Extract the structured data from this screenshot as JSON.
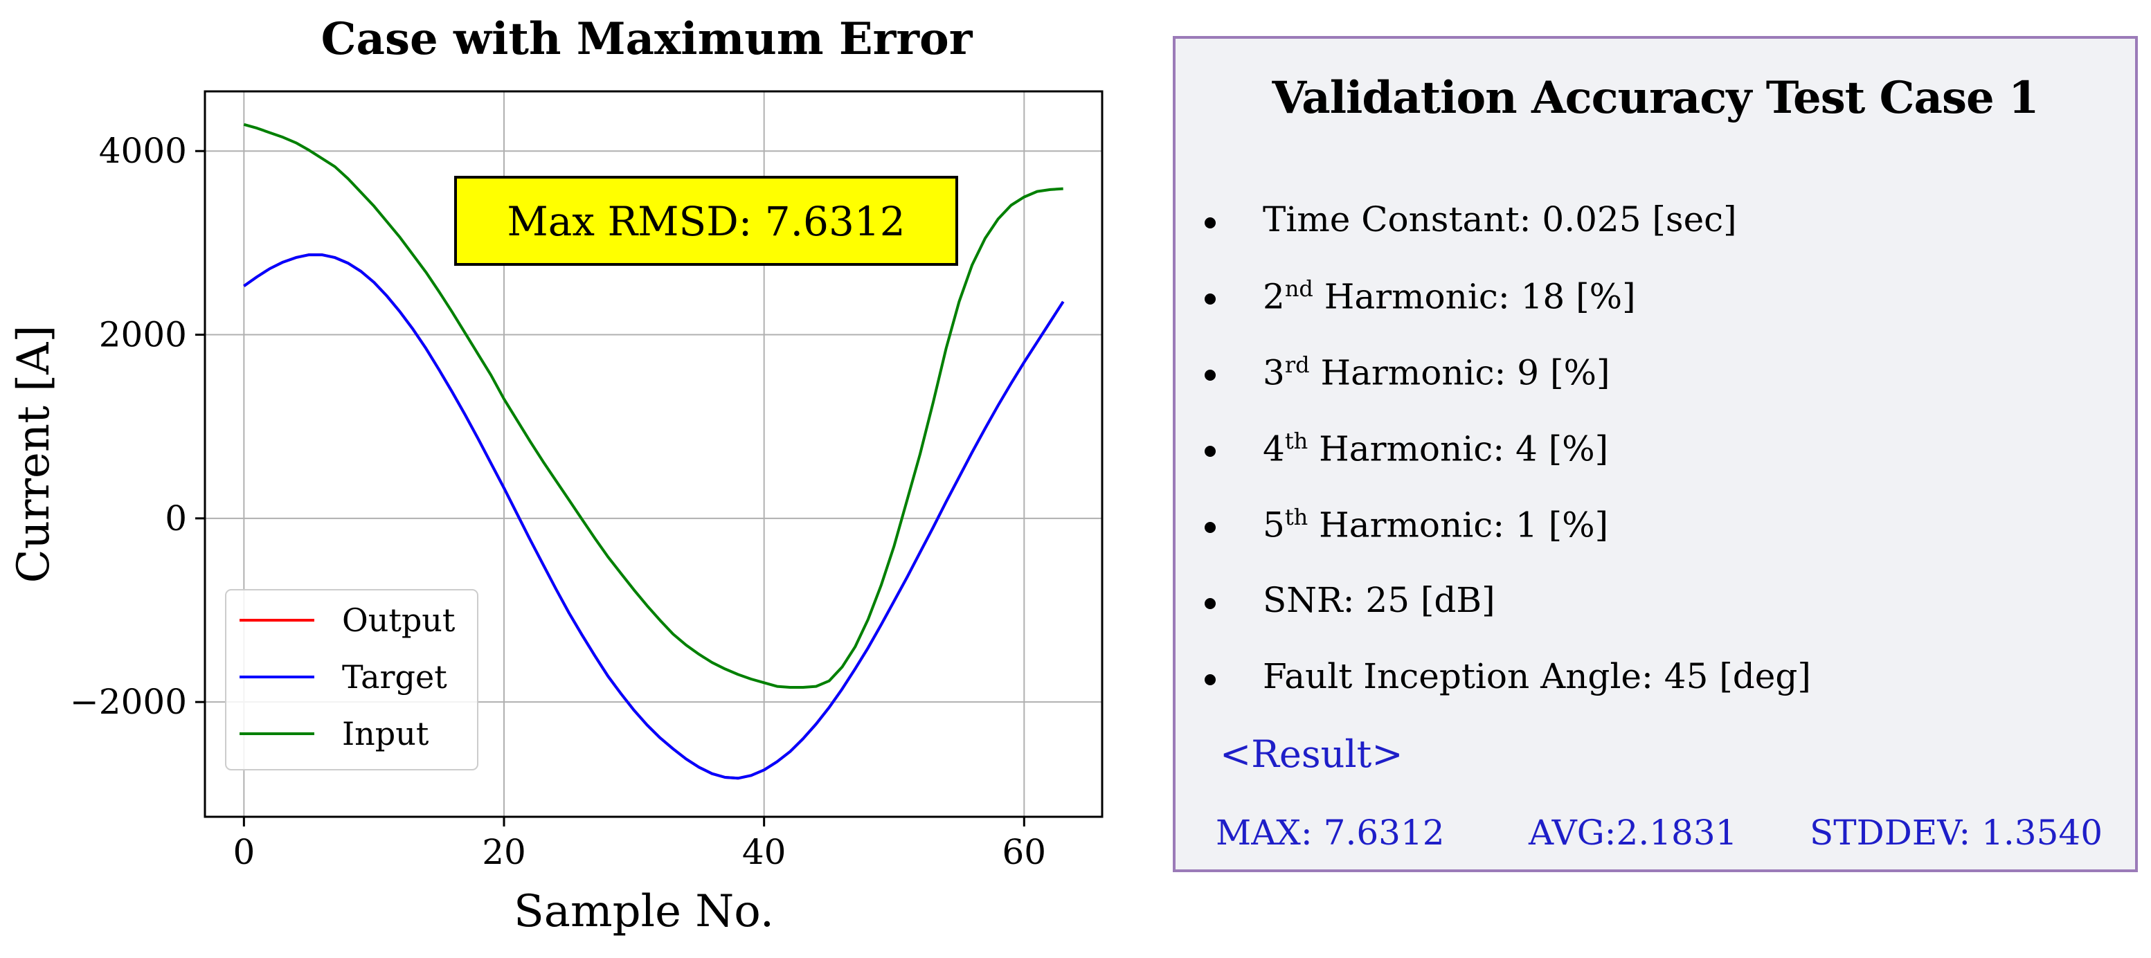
{
  "chart_data": {
    "type": "line",
    "title": "Case with Maximum Error",
    "xlabel": "Sample No.",
    "ylabel": "Current [A]",
    "xlim": [
      -3,
      66
    ],
    "ylim": [
      -3250,
      4650
    ],
    "xticks": [
      0,
      20,
      40,
      60
    ],
    "yticks": [
      -2000,
      0,
      2000,
      4000
    ],
    "xtick_labels": [
      "0",
      "20",
      "40",
      "60"
    ],
    "ytick_labels": [
      "−2000",
      "0",
      "2000",
      "4000"
    ],
    "grid": true,
    "legend_position": "lower-left",
    "annotation": {
      "text": "Max RMSD: 7.6312",
      "background": "#ffff00"
    },
    "x": [
      0,
      1,
      2,
      3,
      4,
      5,
      6,
      7,
      8,
      9,
      10,
      11,
      12,
      13,
      14,
      15,
      16,
      17,
      18,
      19,
      20,
      21,
      22,
      23,
      24,
      25,
      26,
      27,
      28,
      29,
      30,
      31,
      32,
      33,
      34,
      35,
      36,
      37,
      38,
      39,
      40,
      41,
      42,
      43,
      44,
      45,
      46,
      47,
      48,
      49,
      50,
      51,
      52,
      53,
      54,
      55,
      56,
      57,
      58,
      59,
      60,
      61,
      62,
      63
    ],
    "series": [
      {
        "name": "Output",
        "color": "#ff0000",
        "values": [
          2530,
          2630,
          2720,
          2790,
          2840,
          2870,
          2870,
          2840,
          2780,
          2690,
          2570,
          2420,
          2250,
          2060,
          1850,
          1620,
          1380,
          1130,
          870,
          600,
          330,
          50,
          -230,
          -500,
          -770,
          -1030,
          -1270,
          -1500,
          -1720,
          -1910,
          -2090,
          -2250,
          -2390,
          -2510,
          -2620,
          -2710,
          -2780,
          -2820,
          -2830,
          -2800,
          -2740,
          -2650,
          -2540,
          -2400,
          -2240,
          -2060,
          -1860,
          -1640,
          -1410,
          -1160,
          -900,
          -640,
          -370,
          -100,
          180,
          450,
          720,
          980,
          1230,
          1470,
          1700,
          1920,
          2140,
          2360
        ]
      },
      {
        "name": "Target",
        "color": "#0000ff",
        "values": [
          2530,
          2630,
          2720,
          2790,
          2840,
          2870,
          2870,
          2840,
          2780,
          2690,
          2570,
          2420,
          2250,
          2060,
          1850,
          1620,
          1380,
          1130,
          870,
          600,
          330,
          50,
          -230,
          -500,
          -770,
          -1030,
          -1270,
          -1500,
          -1720,
          -1910,
          -2090,
          -2250,
          -2390,
          -2510,
          -2620,
          -2710,
          -2780,
          -2820,
          -2830,
          -2800,
          -2740,
          -2650,
          -2540,
          -2400,
          -2240,
          -2060,
          -1860,
          -1640,
          -1410,
          -1160,
          -900,
          -640,
          -370,
          -100,
          180,
          450,
          720,
          980,
          1230,
          1470,
          1700,
          1920,
          2140,
          2360
        ]
      },
      {
        "name": "Input",
        "color": "#008000",
        "values": [
          4290,
          4250,
          4200,
          4150,
          4090,
          4010,
          3920,
          3830,
          3700,
          3550,
          3400,
          3230,
          3060,
          2870,
          2680,
          2470,
          2250,
          2020,
          1790,
          1560,
          1300,
          1070,
          840,
          620,
          410,
          200,
          -10,
          -220,
          -420,
          -600,
          -780,
          -950,
          -1110,
          -1260,
          -1380,
          -1480,
          -1570,
          -1640,
          -1700,
          -1750,
          -1790,
          -1830,
          -1840,
          -1840,
          -1830,
          -1770,
          -1620,
          -1400,
          -1100,
          -730,
          -300,
          200,
          700,
          1260,
          1850,
          2360,
          2760,
          3050,
          3260,
          3410,
          3500,
          3560,
          3580,
          3590
        ]
      }
    ]
  },
  "panel": {
    "title": "Validation  Accuracy Test Case 1",
    "items": [
      {
        "pre": "Time Constant: 0.025  [sec]",
        "sup": "",
        "post": ""
      },
      {
        "pre": "2",
        "sup": "nd",
        "post": " Harmonic: 18 [%]"
      },
      {
        "pre": "3",
        "sup": "rd",
        "post": " Harmonic: 9 [%]"
      },
      {
        "pre": "4",
        "sup": "th",
        "post": " Harmonic: 4 [%]"
      },
      {
        "pre": "5",
        "sup": "th",
        "post": " Harmonic: 1 [%]"
      },
      {
        "pre": "SNR: 25 [dB]",
        "sup": "",
        "post": ""
      },
      {
        "pre": "Fault Inception Angle: 45 [deg]",
        "sup": "",
        "post": ""
      }
    ],
    "result_label": "<Result>",
    "max": "MAX: 7.6312",
    "avg": "AVG:2.1831",
    "stddev": "STDDEV: 1.3540",
    "result_color": "#1e1ec8",
    "border_color": "#9b7bb8",
    "background": "#f1f2f5"
  }
}
